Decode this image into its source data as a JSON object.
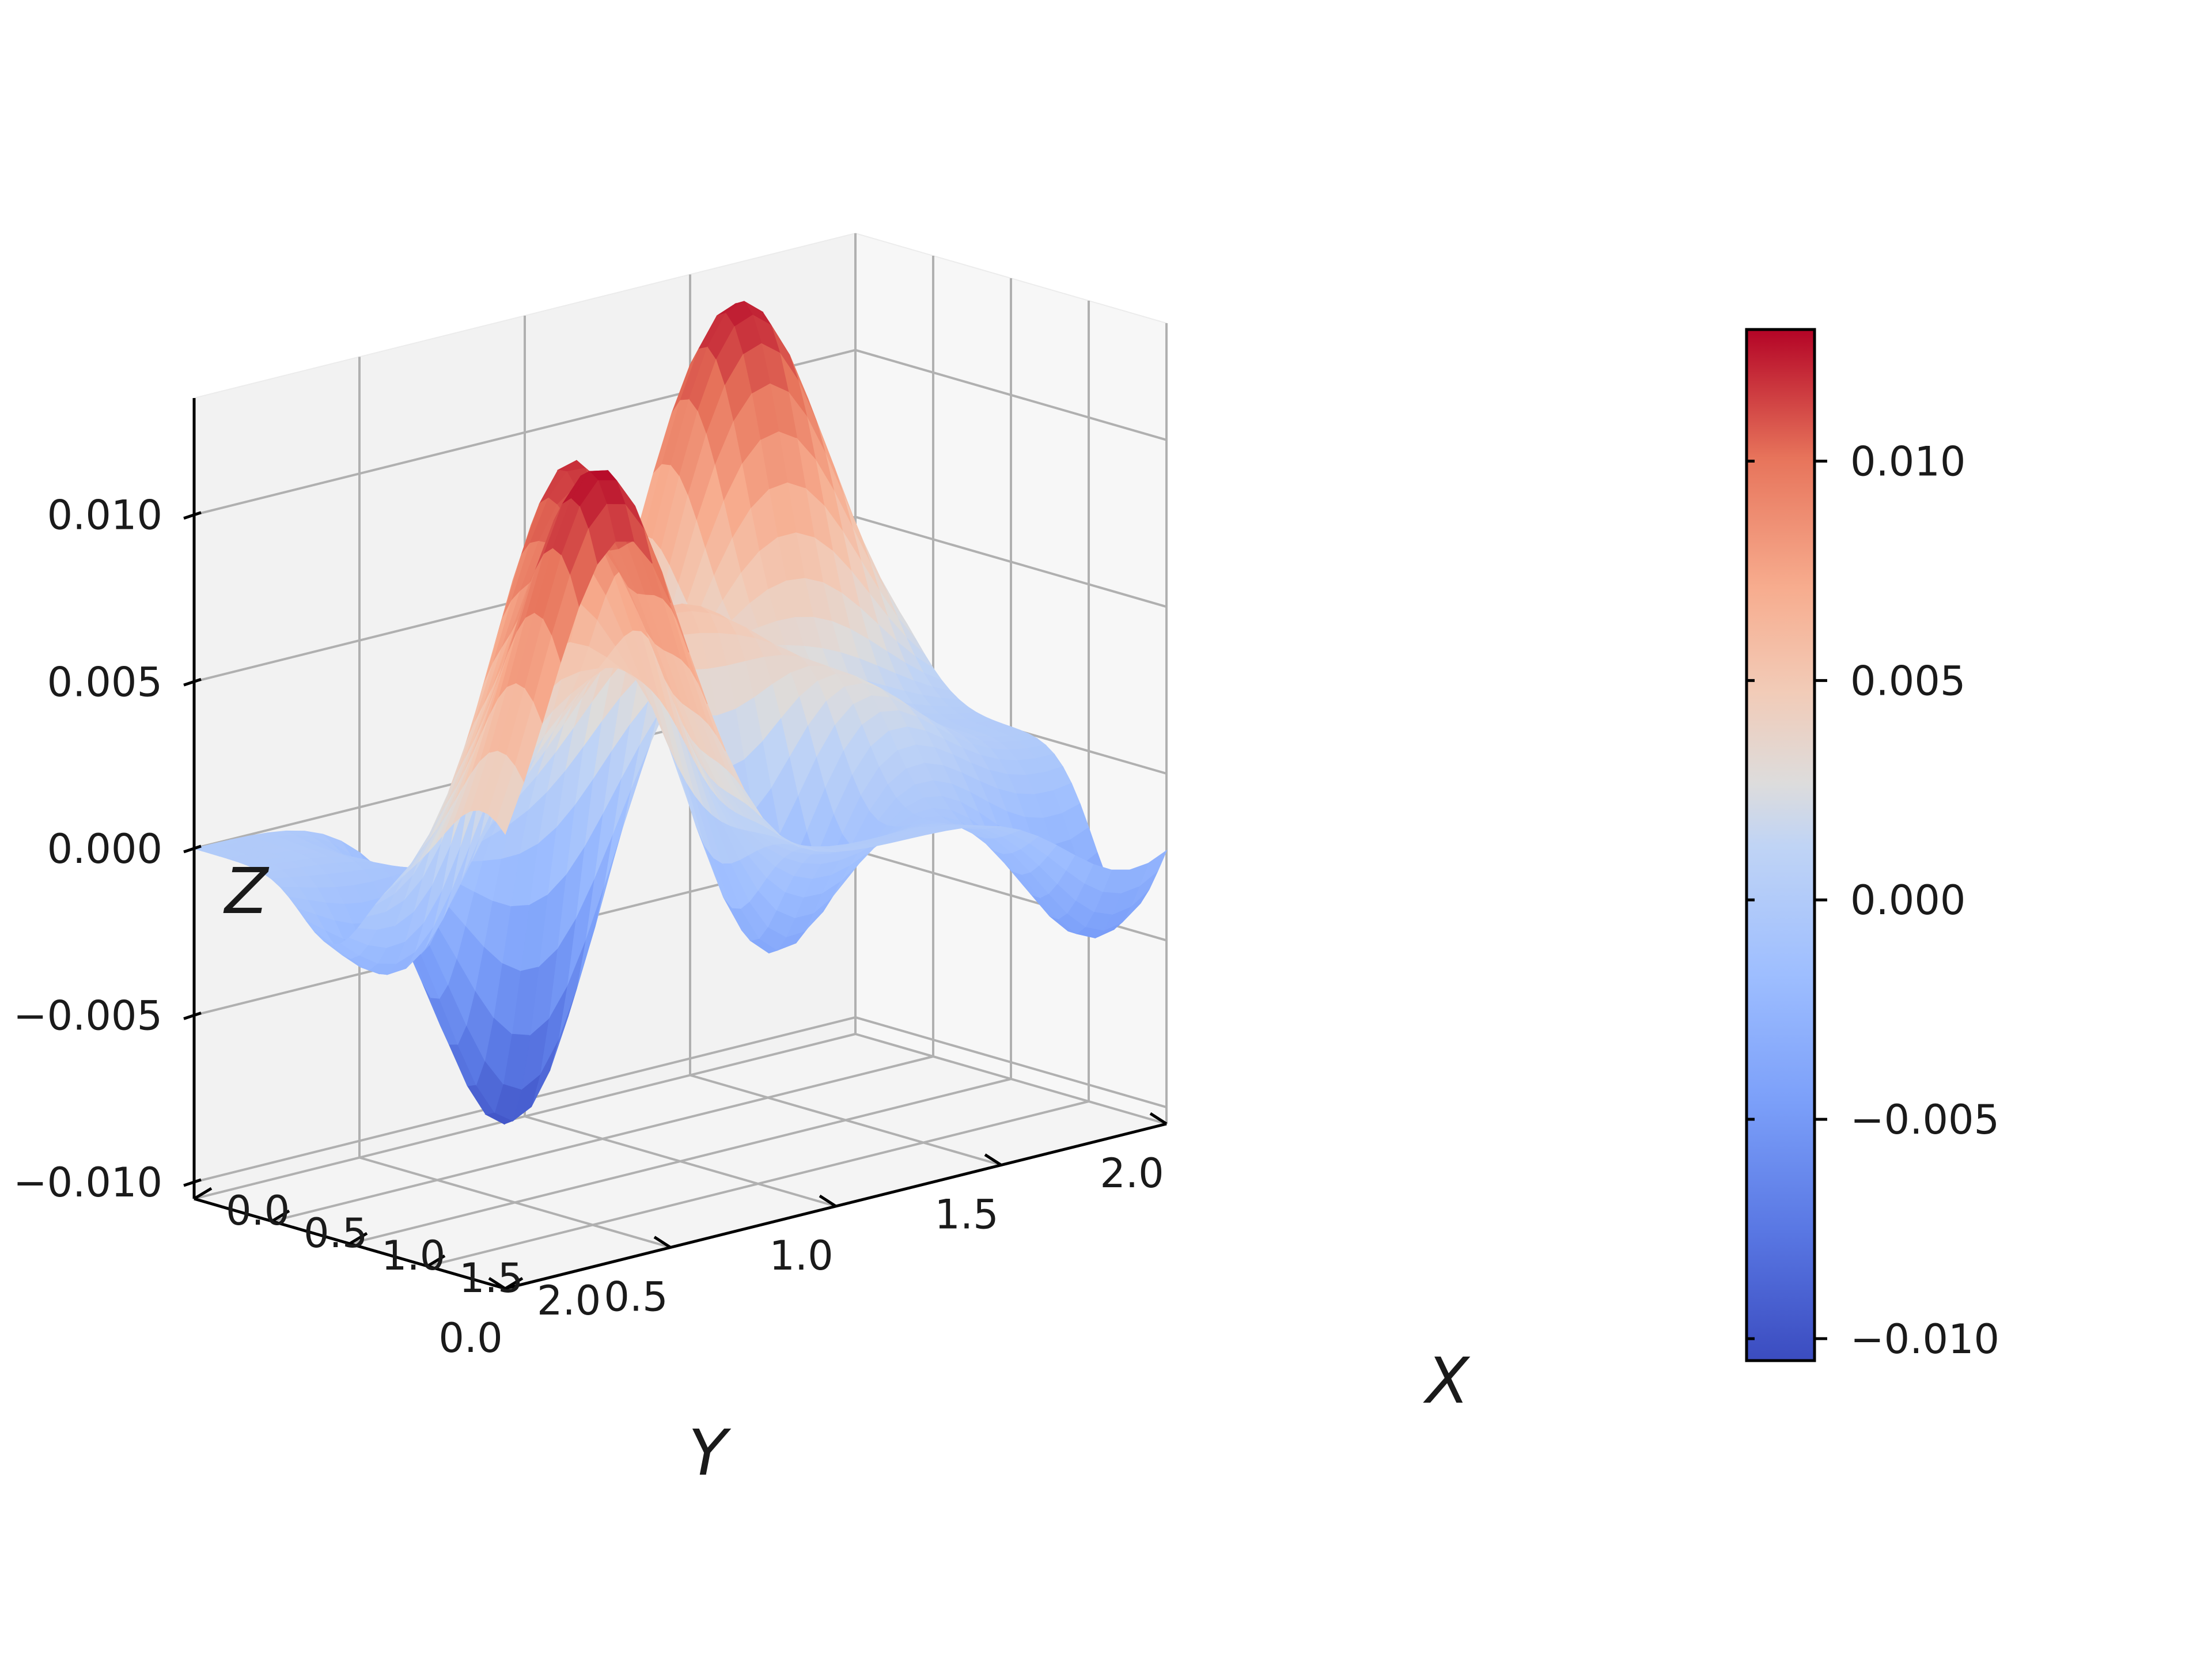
{
  "chart_data": {
    "type": "surface3d",
    "colormap": "coolwarm",
    "colors": {
      "low": "#3b4cc0",
      "mid": "#dddddd",
      "high": "#b40426",
      "pane_left": "#f2f2f2",
      "pane_back": "#f7f7f7",
      "pane_floor": "#f4f4f4"
    },
    "axes": {
      "x": {
        "label": "X",
        "range": [
          0,
          2
        ],
        "ticks": [
          "0.0",
          "0.5",
          "1.0",
          "1.5",
          "2.0"
        ]
      },
      "y": {
        "label": "Y",
        "range": [
          0,
          2
        ],
        "ticks": [
          "0.0",
          "0.5",
          "1.0",
          "1.5",
          "2.0"
        ]
      },
      "z": {
        "label": "Z",
        "range": [
          -0.0105,
          0.0135
        ],
        "ticks": [
          "0.010",
          "0.005",
          "0.000",
          "−0.005",
          "−0.010"
        ]
      }
    },
    "colorbar": {
      "range": [
        -0.0105,
        0.013
      ],
      "ticks": [
        {
          "value": 0.01,
          "label": "0.010"
        },
        {
          "value": 0.005,
          "label": "0.005"
        },
        {
          "value": 0.0,
          "label": "0.000"
        },
        {
          "value": -0.005,
          "label": "−0.005"
        },
        {
          "value": -0.01,
          "label": "−0.010"
        }
      ]
    },
    "surface_features": [
      {
        "x": 1.8,
        "y": 0.4,
        "z": 0.013
      },
      {
        "x": 0.1,
        "y": 1.6,
        "z": 0.0128
      },
      {
        "x": 1.2,
        "y": 0.55,
        "z": 0.011
      },
      {
        "x": 0.8,
        "y": 1.0,
        "z": 0.007
      },
      {
        "x": 1.1,
        "y": 1.4,
        "z": 0.005
      },
      {
        "x": 0.3,
        "y": 0.8,
        "z": -0.01
      },
      {
        "x": 1.2,
        "y": 1.1,
        "z": -0.0065
      },
      {
        "x": 1.7,
        "y": 1.9,
        "z": -0.005
      }
    ]
  }
}
